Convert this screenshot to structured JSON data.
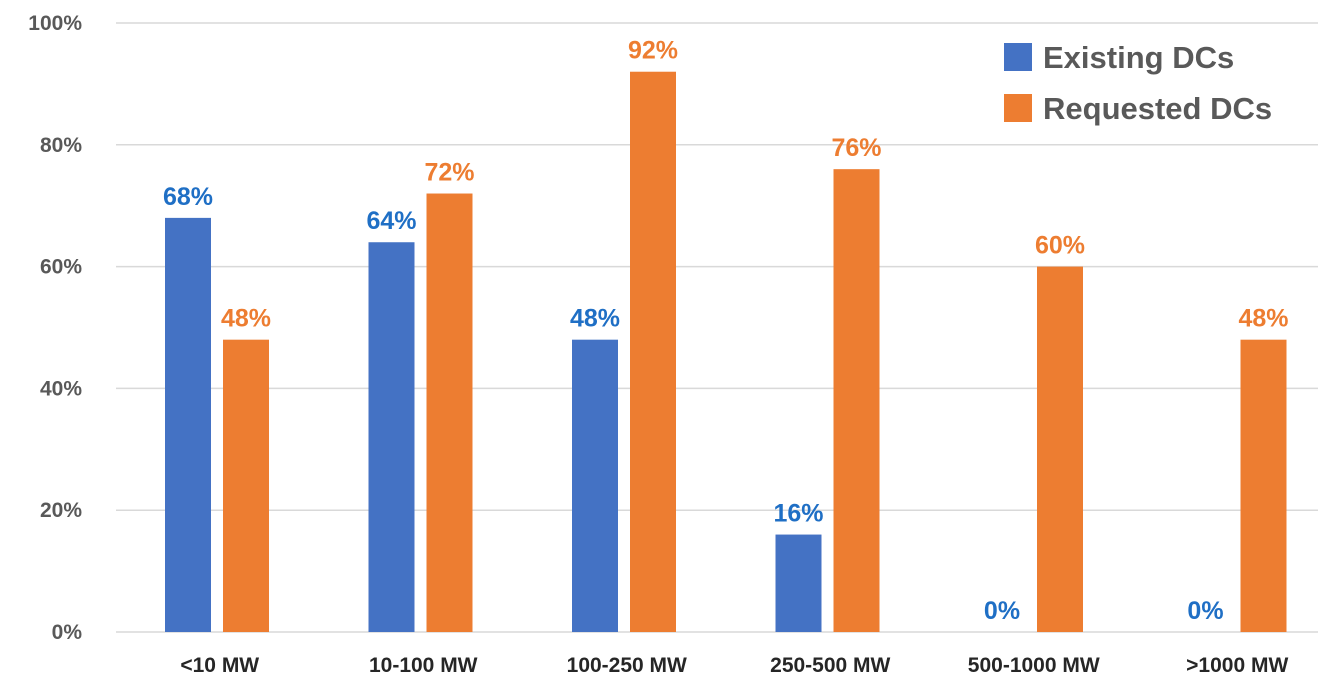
{
  "chart_data": {
    "type": "bar",
    "title": "",
    "xlabel": "",
    "ylabel": "",
    "categories": [
      "<10 MW",
      "10-100 MW",
      "100-250 MW",
      "250-500 MW",
      "500-1000 MW",
      ">1000 MW"
    ],
    "series": [
      {
        "name": "Existing DCs",
        "color": "#4472c4",
        "label_color": "#1f6fc5",
        "values": [
          68,
          64,
          48,
          16,
          0,
          0
        ],
        "labels": [
          "68%",
          "64%",
          "48%",
          "16%",
          "0%",
          "0%"
        ]
      },
      {
        "name": "Requested DCs",
        "color": "#ed7d31",
        "label_color": "#ed7d31",
        "values": [
          48,
          72,
          92,
          76,
          60,
          48
        ],
        "labels": [
          "48%",
          "72%",
          "92%",
          "76%",
          "60%",
          "48%"
        ]
      }
    ],
    "ylim": [
      0,
      100
    ],
    "yticks": [
      0,
      20,
      40,
      60,
      80,
      100
    ],
    "ytick_labels": [
      "0%",
      "20%",
      "40%",
      "60%",
      "80%",
      "100%"
    ],
    "grid": true,
    "legend_position": "top-right"
  }
}
